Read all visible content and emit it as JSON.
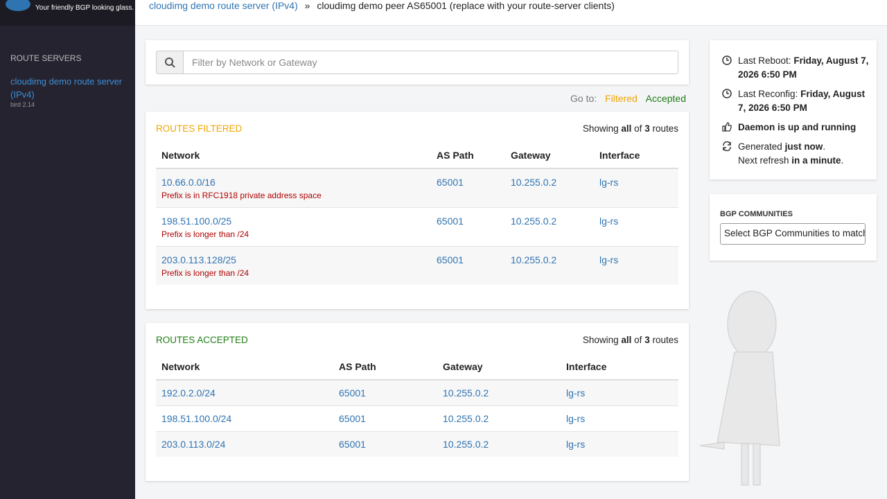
{
  "sidebar": {
    "tagline": "Your friendly BGP looking glass.",
    "section": "ROUTE SERVERS",
    "servers": [
      {
        "name": "cloudimg demo route server (IPv4)",
        "version": "bird 2.14"
      }
    ]
  },
  "breadcrumb": {
    "server": "cloudimg demo route server (IPv4)",
    "separator": "»",
    "peer": "cloudimg demo peer AS65001 (replace with your route-server clients)"
  },
  "filter": {
    "placeholder": "Filter by Network or Gateway"
  },
  "goto": {
    "label": "Go to:",
    "links": [
      "Filtered",
      "Accepted"
    ]
  },
  "filtered": {
    "title": "ROUTES FILTERED",
    "summary": {
      "prefix": "Showing",
      "scope": "all",
      "of": "of",
      "count": 3,
      "suffix": "routes"
    },
    "columns": [
      "Network",
      "AS Path",
      "Gateway",
      "Interface"
    ],
    "rows": [
      {
        "network": "10.66.0.0/16",
        "as_path": "65001",
        "gateway": "10.255.0.2",
        "interface": "lg-rs",
        "reason": "Prefix is in RFC1918 private address space"
      },
      {
        "network": "198.51.100.0/25",
        "as_path": "65001",
        "gateway": "10.255.0.2",
        "interface": "lg-rs",
        "reason": "Prefix is longer than /24"
      },
      {
        "network": "203.0.113.128/25",
        "as_path": "65001",
        "gateway": "10.255.0.2",
        "interface": "lg-rs",
        "reason": "Prefix is longer than /24"
      }
    ]
  },
  "accepted": {
    "title": "ROUTES ACCEPTED",
    "summary": {
      "prefix": "Showing",
      "scope": "all",
      "of": "of",
      "count": 3,
      "suffix": "routes"
    },
    "columns": [
      "Network",
      "AS Path",
      "Gateway",
      "Interface"
    ],
    "rows": [
      {
        "network": "192.0.2.0/24",
        "as_path": "65001",
        "gateway": "10.255.0.2",
        "interface": "lg-rs"
      },
      {
        "network": "198.51.100.0/24",
        "as_path": "65001",
        "gateway": "10.255.0.2",
        "interface": "lg-rs"
      },
      {
        "network": "203.0.113.0/24",
        "as_path": "65001",
        "gateway": "10.255.0.2",
        "interface": "lg-rs"
      }
    ]
  },
  "status": {
    "reboot": {
      "label": "Last Reboot:",
      "value": "Friday, August 7, 2026 6:50 PM"
    },
    "reconfig": {
      "label": "Last Reconfig:",
      "value": "Friday, August 7, 2026 6:50 PM"
    },
    "daemon": "Daemon is up and running",
    "generated": {
      "label": "Generated",
      "value": "just now",
      "end": "."
    },
    "refresh": {
      "label": "Next refresh",
      "value": "in a minute",
      "end": "."
    }
  },
  "communities": {
    "title": "BGP COMMUNITIES",
    "placeholder": "Select BGP Communities to match"
  }
}
